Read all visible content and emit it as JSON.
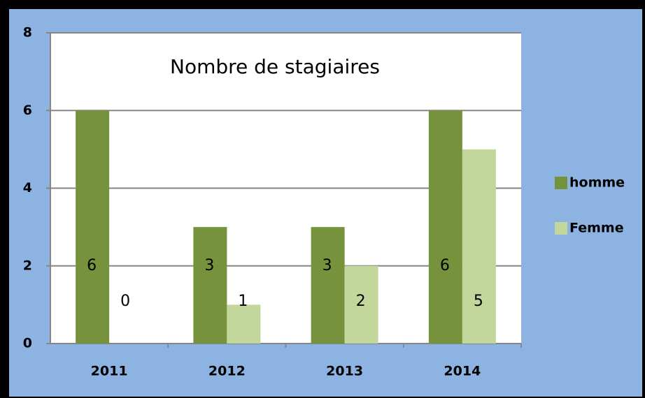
{
  "chart_data": {
    "type": "bar",
    "title": "Nombre de stagiaires",
    "categories": [
      "2011",
      "2012",
      "2013",
      "2014"
    ],
    "series": [
      {
        "name": "homme",
        "color": "#76923c",
        "values": [
          6,
          3,
          3,
          6
        ]
      },
      {
        "name": "Femme",
        "color": "#c3d69b",
        "values": [
          0,
          1,
          2,
          5
        ]
      }
    ],
    "ylim": [
      0,
      8
    ],
    "yticks": [
      0,
      2,
      4,
      6,
      8
    ],
    "grid": true,
    "legend": "right"
  }
}
